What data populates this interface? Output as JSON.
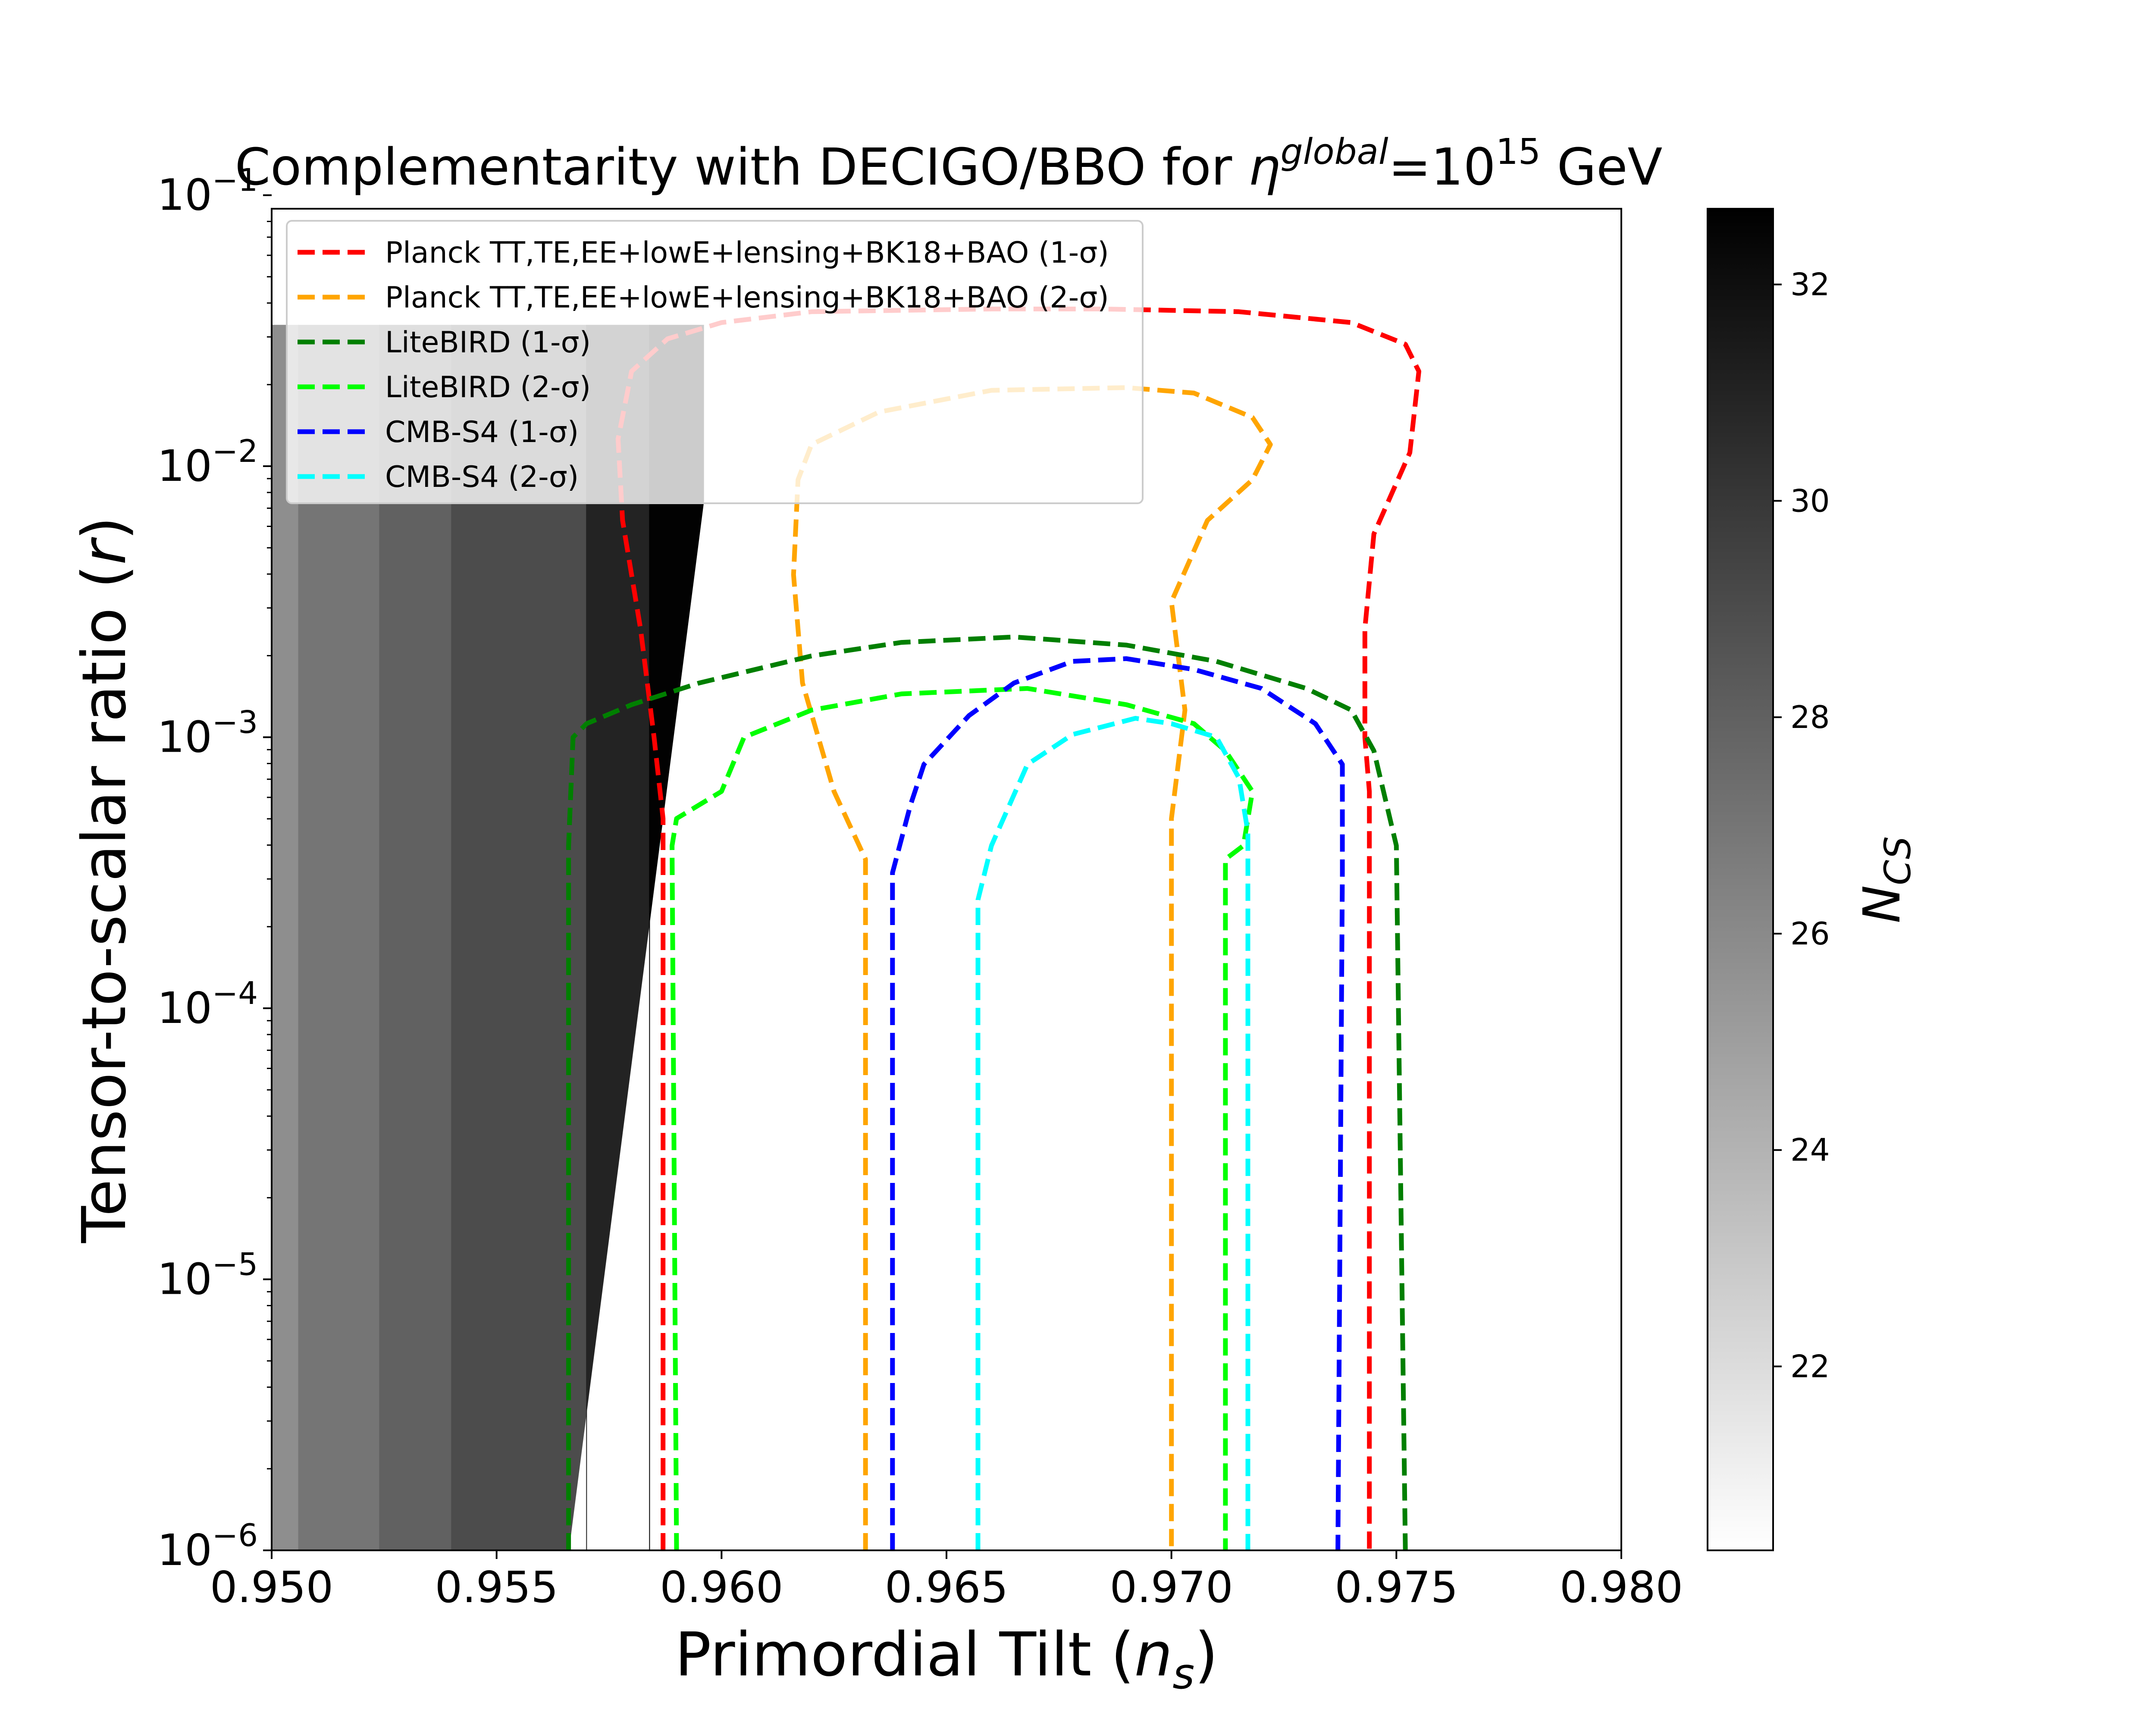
{
  "chart_data": {
    "type": "line",
    "title": {
      "prefix": "Complementarity with DECIGO/BBO for ",
      "symbol": "η",
      "superscript": "global",
      "equals": "=10",
      "exponent": "15",
      "suffix": " GeV"
    },
    "xlabel": {
      "main": "Primordial Tilt (",
      "italic": "n",
      "sub": "s",
      "end": ")"
    },
    "ylabel": {
      "main": "Tensor-to-scalar ratio (",
      "italic": "r",
      "end": ")"
    },
    "xlim": [
      0.95,
      0.98
    ],
    "ylim_log10": [
      -6,
      -1.05
    ],
    "y_scale": "log",
    "x_ticks": [
      {
        "value": 0.95,
        "label": "0.950"
      },
      {
        "value": 0.955,
        "label": "0.955"
      },
      {
        "value": 0.96,
        "label": "0.960"
      },
      {
        "value": 0.965,
        "label": "0.965"
      },
      {
        "value": 0.97,
        "label": "0.970"
      },
      {
        "value": 0.975,
        "label": "0.975"
      },
      {
        "value": 0.98,
        "label": "0.980"
      }
    ],
    "y_ticks": [
      {
        "exp": -6,
        "base": "10",
        "power": "−6"
      },
      {
        "exp": -5,
        "base": "10",
        "power": "−5"
      },
      {
        "exp": -4,
        "base": "10",
        "power": "−4"
      },
      {
        "exp": -3,
        "base": "10",
        "power": "−3"
      },
      {
        "exp": -2,
        "base": "10",
        "power": "−2"
      },
      {
        "exp": -1,
        "base": "10",
        "power": "−1"
      }
    ],
    "legend_position": "top-left",
    "series": [
      {
        "name": "Planck TT,TE,EE+lowE+lensing+BK18+BAO (1-σ)",
        "color": "#ff0000",
        "style": "dashed",
        "points": [
          [
            0.9587,
            -6
          ],
          [
            0.9587,
            -3.3
          ],
          [
            0.9585,
            -3.0
          ],
          [
            0.9582,
            -2.6
          ],
          [
            0.9578,
            -2.2
          ],
          [
            0.9577,
            -1.9
          ],
          [
            0.958,
            -1.65
          ],
          [
            0.9588,
            -1.53
          ],
          [
            0.96,
            -1.47
          ],
          [
            0.962,
            -1.43
          ],
          [
            0.966,
            -1.42
          ],
          [
            0.9685,
            -1.42
          ],
          [
            0.9715,
            -1.43
          ],
          [
            0.974,
            -1.47
          ],
          [
            0.9752,
            -1.55
          ],
          [
            0.9755,
            -1.65
          ],
          [
            0.9753,
            -1.95
          ],
          [
            0.9745,
            -2.25
          ],
          [
            0.9743,
            -2.6
          ],
          [
            0.9743,
            -3.0
          ],
          [
            0.9744,
            -3.2
          ],
          [
            0.9744,
            -6
          ]
        ]
      },
      {
        "name": "Planck TT,TE,EE+lowE+lensing+BK18+BAO (2-σ)",
        "color": "#ffa500",
        "style": "dashed",
        "points": [
          [
            0.9632,
            -6
          ],
          [
            0.9632,
            -3.45
          ],
          [
            0.9625,
            -3.2
          ],
          [
            0.9618,
            -2.8
          ],
          [
            0.9616,
            -2.4
          ],
          [
            0.9617,
            -2.05
          ],
          [
            0.962,
            -1.92
          ],
          [
            0.9635,
            -1.8
          ],
          [
            0.966,
            -1.72
          ],
          [
            0.969,
            -1.71
          ],
          [
            0.9705,
            -1.73
          ],
          [
            0.9718,
            -1.82
          ],
          [
            0.9722,
            -1.92
          ],
          [
            0.9718,
            -2.05
          ],
          [
            0.9708,
            -2.2
          ],
          [
            0.97,
            -2.5
          ],
          [
            0.9703,
            -2.9
          ],
          [
            0.97,
            -3.3
          ],
          [
            0.97,
            -3.45
          ],
          [
            0.97,
            -6
          ]
        ]
      },
      {
        "name": "LiteBIRD (1-σ)",
        "color": "#007f00",
        "style": "dashed",
        "points": [
          [
            0.9566,
            -6
          ],
          [
            0.9566,
            -3.4
          ],
          [
            0.9567,
            -3.0
          ],
          [
            0.957,
            -2.95
          ],
          [
            0.958,
            -2.88
          ],
          [
            0.9595,
            -2.8
          ],
          [
            0.962,
            -2.7
          ],
          [
            0.964,
            -2.65
          ],
          [
            0.9665,
            -2.63
          ],
          [
            0.969,
            -2.66
          ],
          [
            0.971,
            -2.72
          ],
          [
            0.973,
            -2.82
          ],
          [
            0.974,
            -2.9
          ],
          [
            0.9745,
            -3.05
          ],
          [
            0.975,
            -3.4
          ],
          [
            0.9752,
            -6
          ]
        ]
      },
      {
        "name": "LiteBIRD (2-σ)",
        "color": "#00ff00",
        "style": "dashed",
        "points": [
          [
            0.959,
            -6
          ],
          [
            0.9589,
            -3.4
          ],
          [
            0.959,
            -3.3
          ],
          [
            0.96,
            -3.2
          ],
          [
            0.9605,
            -3.0
          ],
          [
            0.962,
            -2.9
          ],
          [
            0.964,
            -2.84
          ],
          [
            0.9668,
            -2.82
          ],
          [
            0.969,
            -2.88
          ],
          [
            0.9705,
            -2.95
          ],
          [
            0.9712,
            -3.05
          ],
          [
            0.9718,
            -3.2
          ],
          [
            0.9716,
            -3.4
          ],
          [
            0.9712,
            -3.45
          ],
          [
            0.9712,
            -6
          ]
        ]
      },
      {
        "name": "CMB-S4 (1-σ)",
        "color": "#0000ff",
        "style": "dashed",
        "points": [
          [
            0.9638,
            -6
          ],
          [
            0.9638,
            -3.5
          ],
          [
            0.9642,
            -3.25
          ],
          [
            0.9645,
            -3.1
          ],
          [
            0.9655,
            -2.92
          ],
          [
            0.9665,
            -2.8
          ],
          [
            0.9678,
            -2.72
          ],
          [
            0.969,
            -2.71
          ],
          [
            0.9705,
            -2.75
          ],
          [
            0.972,
            -2.82
          ],
          [
            0.9732,
            -2.95
          ],
          [
            0.9738,
            -3.1
          ],
          [
            0.9738,
            -3.5
          ],
          [
            0.9737,
            -6
          ]
        ]
      },
      {
        "name": "CMB-S4 (2-σ)",
        "color": "#00ffff",
        "style": "dashed",
        "points": [
          [
            0.9657,
            -6
          ],
          [
            0.9657,
            -3.6
          ],
          [
            0.966,
            -3.4
          ],
          [
            0.9668,
            -3.1
          ],
          [
            0.9678,
            -2.99
          ],
          [
            0.9692,
            -2.93
          ],
          [
            0.97,
            -2.95
          ],
          [
            0.971,
            -3.0
          ],
          [
            0.9715,
            -3.15
          ],
          [
            0.9717,
            -3.35
          ],
          [
            0.9717,
            -6
          ]
        ]
      }
    ],
    "shaded_region": {
      "description": "grayscale N_CS colored region",
      "bands": [
        {
          "x0": 0.95,
          "x1": 0.9506,
          "value": 25.8
        },
        {
          "x0": 0.9506,
          "x1": 0.9524,
          "value": 27.0
        },
        {
          "x0": 0.9524,
          "x1": 0.954,
          "value": 28.0
        },
        {
          "x0": 0.954,
          "x1": 0.957,
          "value": 29.0
        },
        {
          "x0": 0.957,
          "x1": 0.9584,
          "value": 31.0
        },
        {
          "x0": 0.9584,
          "x1": 0.9596,
          "value": 32.6
        }
      ],
      "top_log10": -1.48,
      "edge": [
        [
          0.9566,
          -6
        ],
        [
          0.9596,
          -2.13
        ]
      ]
    },
    "colorbar": {
      "label_italic": "N",
      "label_sub": "CS",
      "range": [
        20.3,
        32.7
      ],
      "ticks": [
        {
          "value": 22,
          "label": "22"
        },
        {
          "value": 24,
          "label": "24"
        },
        {
          "value": 26,
          "label": "26"
        },
        {
          "value": 28,
          "label": "28"
        },
        {
          "value": 30,
          "label": "30"
        },
        {
          "value": 32,
          "label": "32"
        }
      ]
    }
  }
}
